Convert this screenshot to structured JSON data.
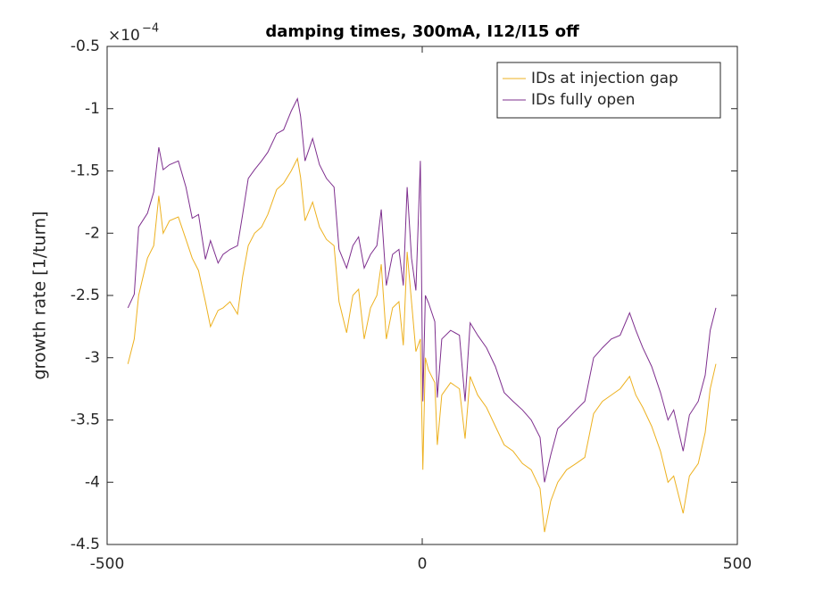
{
  "chart_data": {
    "type": "line",
    "title": "damping times, 300mA, I12/I15 off",
    "ylabel": "growth rate [1/turn]",
    "y_multiplier": "×10",
    "y_multiplier_exponent": "−4",
    "x": [
      -467,
      -457,
      -450,
      -436,
      -426,
      -418,
      -411,
      -401,
      -387,
      -375,
      -365,
      -355,
      -344,
      -336,
      -324,
      -316,
      -305,
      -293,
      -285,
      -276,
      -266,
      -255,
      -245,
      -231,
      -220,
      -208,
      -198,
      -193,
      -186,
      -174,
      -163,
      -152,
      -140,
      -132,
      -120,
      -110,
      -101,
      -92,
      -82,
      -72,
      -65,
      -57,
      -47,
      -37,
      -30,
      -24,
      -17,
      -10,
      -3,
      1,
      5,
      10,
      20,
      24,
      31,
      45,
      59,
      68,
      76,
      88,
      102,
      116,
      130,
      144,
      159,
      173,
      187,
      194,
      204,
      215,
      229,
      244,
      258,
      272,
      286,
      300,
      314,
      329,
      339,
      350,
      364,
      378,
      390,
      399,
      414,
      424,
      438,
      449,
      457,
      466
    ],
    "series": [
      {
        "name": "IDs at injection gap",
        "color": "#EDB120",
        "values": [
          -3.05,
          -2.85,
          -2.5,
          -2.2,
          -2.1,
          -1.7,
          -2.0,
          -1.9,
          -1.87,
          -2.05,
          -2.2,
          -2.3,
          -2.55,
          -2.75,
          -2.62,
          -2.6,
          -2.55,
          -2.65,
          -2.35,
          -2.1,
          -2.0,
          -1.95,
          -1.85,
          -1.65,
          -1.6,
          -1.5,
          -1.4,
          -1.55,
          -1.9,
          -1.75,
          -1.95,
          -2.05,
          -2.1,
          -2.55,
          -2.8,
          -2.5,
          -2.45,
          -2.85,
          -2.6,
          -2.5,
          -2.25,
          -2.85,
          -2.6,
          -2.55,
          -2.9,
          -2.15,
          -2.55,
          -2.95,
          -2.85,
          -3.9,
          -3.0,
          -3.1,
          -3.2,
          -3.7,
          -3.3,
          -3.2,
          -3.25,
          -3.65,
          -3.15,
          -3.3,
          -3.4,
          -3.55,
          -3.7,
          -3.75,
          -3.85,
          -3.9,
          -4.05,
          -4.4,
          -4.15,
          -4.0,
          -3.9,
          -3.85,
          -3.8,
          -3.45,
          -3.35,
          -3.3,
          -3.25,
          -3.15,
          -3.3,
          -3.4,
          -3.55,
          -3.75,
          -4.0,
          -3.95,
          -4.25,
          -3.95,
          -3.85,
          -3.6,
          -3.25,
          -3.05
        ]
      },
      {
        "name": "IDs fully open",
        "color": "#7E2F8E",
        "values": [
          -2.6,
          -2.49,
          -1.95,
          -1.84,
          -1.67,
          -1.31,
          -1.49,
          -1.45,
          -1.42,
          -1.63,
          -1.88,
          -1.85,
          -2.21,
          -2.06,
          -2.24,
          -2.17,
          -2.13,
          -2.1,
          -1.85,
          -1.56,
          -1.49,
          -1.42,
          -1.35,
          -1.2,
          -1.17,
          -1.02,
          -0.92,
          -1.06,
          -1.42,
          -1.24,
          -1.45,
          -1.56,
          -1.63,
          -2.13,
          -2.28,
          -2.1,
          -2.03,
          -2.28,
          -2.17,
          -2.1,
          -1.81,
          -2.42,
          -2.17,
          -2.13,
          -2.42,
          -1.63,
          -2.2,
          -2.46,
          -1.42,
          -3.35,
          -2.5,
          -2.56,
          -2.71,
          -3.32,
          -2.85,
          -2.78,
          -2.82,
          -3.35,
          -2.72,
          -2.82,
          -2.92,
          -3.07,
          -3.28,
          -3.35,
          -3.42,
          -3.5,
          -3.64,
          -4.0,
          -3.78,
          -3.57,
          -3.5,
          -3.42,
          -3.35,
          -3.0,
          -2.92,
          -2.85,
          -2.82,
          -2.64,
          -2.78,
          -2.92,
          -3.07,
          -3.28,
          -3.5,
          -3.42,
          -3.75,
          -3.46,
          -3.35,
          -3.14,
          -2.78,
          -2.6
        ]
      }
    ],
    "xlim": [
      -500,
      500
    ],
    "xticks": [
      -500,
      0,
      500
    ],
    "ylim": [
      -4.5,
      -0.5
    ],
    "yticks": [
      -4.5,
      -4,
      -3.5,
      -3,
      -2.5,
      -2,
      -1.5,
      -1,
      -0.5
    ],
    "grid": false,
    "legend": "northeast"
  }
}
